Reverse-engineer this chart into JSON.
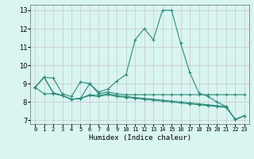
{
  "xlabel": "Humidex (Indice chaleur)",
  "background_color": "#d8f5f0",
  "line_color": "#2d8b7a",
  "xlim": [
    -0.5,
    23.5
  ],
  "ylim": [
    6.8,
    13.3
  ],
  "yticks": [
    7,
    8,
    9,
    10,
    11,
    12,
    13
  ],
  "xticks": [
    0,
    1,
    2,
    3,
    4,
    5,
    6,
    7,
    8,
    9,
    10,
    11,
    12,
    13,
    14,
    15,
    16,
    17,
    18,
    19,
    20,
    21,
    22,
    23
  ],
  "series1": {
    "x": [
      0,
      1,
      2,
      3,
      4,
      5,
      6,
      7,
      8,
      9,
      10,
      11,
      12,
      13,
      14,
      15,
      16,
      17,
      18,
      19,
      20,
      21,
      22,
      23
    ],
    "y": [
      8.8,
      9.35,
      9.3,
      8.45,
      8.3,
      9.1,
      9.0,
      8.55,
      8.7,
      9.15,
      9.5,
      11.4,
      12.0,
      11.4,
      13.0,
      13.0,
      11.2,
      9.6,
      8.5,
      8.3,
      8.0,
      7.75,
      7.05,
      7.25
    ]
  },
  "series2": {
    "x": [
      0,
      1,
      2,
      3,
      4,
      5,
      6,
      7,
      8,
      9,
      10,
      11,
      12,
      13,
      14,
      15,
      16,
      17,
      18,
      19,
      20,
      21,
      22,
      23
    ],
    "y": [
      8.8,
      9.35,
      8.5,
      8.35,
      8.15,
      8.2,
      9.0,
      8.45,
      8.55,
      8.45,
      8.4,
      8.4,
      8.4,
      8.4,
      8.4,
      8.4,
      8.4,
      8.4,
      8.4,
      8.4,
      8.4,
      8.4,
      8.4,
      8.4
    ]
  },
  "series3": {
    "x": [
      0,
      1,
      2,
      3,
      4,
      5,
      6,
      7,
      8,
      9,
      10,
      11,
      12,
      13,
      14,
      15,
      16,
      17,
      18,
      19,
      20,
      21,
      22,
      23
    ],
    "y": [
      8.8,
      9.35,
      8.5,
      8.35,
      8.15,
      8.2,
      8.4,
      8.35,
      8.45,
      8.35,
      8.3,
      8.25,
      8.2,
      8.15,
      8.1,
      8.05,
      8.0,
      7.95,
      7.9,
      7.85,
      7.8,
      7.75,
      7.05,
      7.25
    ]
  },
  "series4": {
    "x": [
      0,
      1,
      2,
      3,
      4,
      5,
      6,
      7,
      8,
      9,
      10,
      11,
      12,
      13,
      14,
      15,
      16,
      17,
      18,
      19,
      20,
      21,
      22,
      23
    ],
    "y": [
      8.8,
      8.45,
      8.45,
      8.35,
      8.15,
      8.2,
      8.35,
      8.3,
      8.4,
      8.3,
      8.25,
      8.2,
      8.15,
      8.1,
      8.05,
      8.0,
      7.95,
      7.9,
      7.85,
      7.8,
      7.75,
      7.7,
      7.05,
      7.25
    ]
  }
}
